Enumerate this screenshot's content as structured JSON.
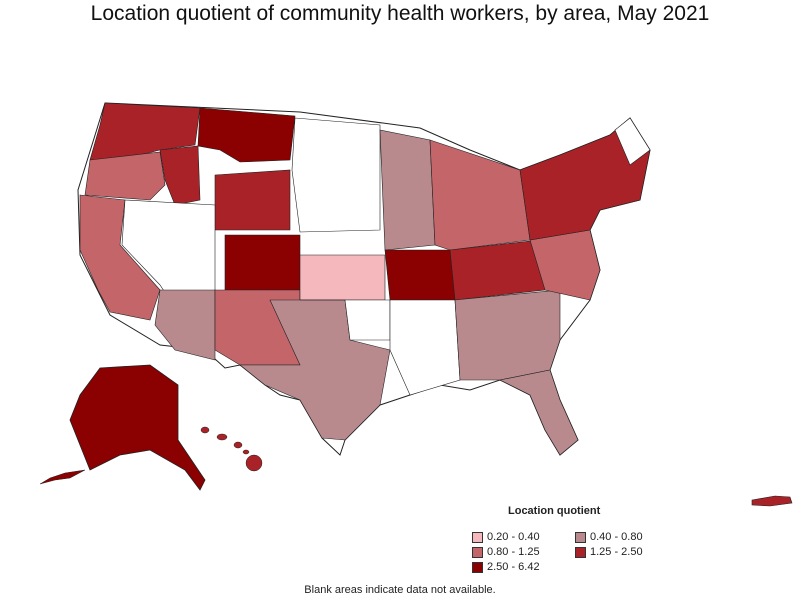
{
  "title": "Location quotient of community health workers, by area, May 2021",
  "legend": {
    "title": "Location quotient",
    "items": [
      {
        "label": "0.20 - 0.40",
        "color": "#f4b8bd"
      },
      {
        "label": "0.40 - 0.80",
        "color": "#b88a8e"
      },
      {
        "label": "0.80 - 1.25",
        "color": "#c4656a"
      },
      {
        "label": "1.25 - 2.50",
        "color": "#a82228"
      },
      {
        "label": "2.50 - 6.42",
        "color": "#8b0000"
      }
    ]
  },
  "note": "Blank areas indicate data not available.",
  "map": {
    "region": "United States (metropolitan and nonmetropolitan areas)",
    "no_data_color": "#ffffff",
    "border_color": "#222222"
  }
}
